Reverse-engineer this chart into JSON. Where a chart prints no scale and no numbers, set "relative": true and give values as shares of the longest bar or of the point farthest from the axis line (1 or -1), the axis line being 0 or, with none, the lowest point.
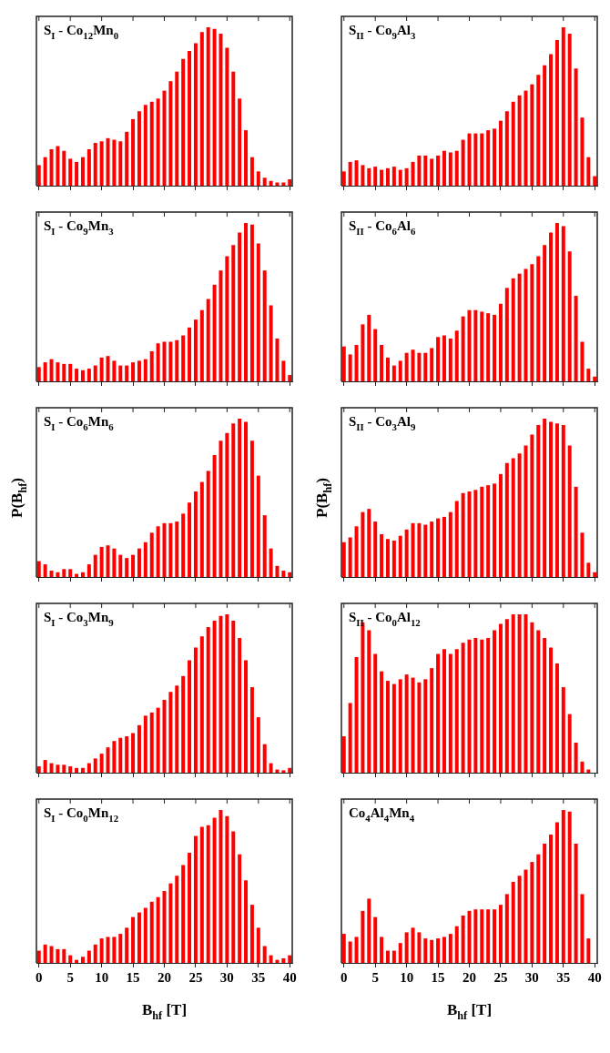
{
  "chart_data": [
    {
      "type": "bar",
      "title": "S$_{I}$ - Co$_{12}$Mn$_{0}$",
      "relative": true,
      "color": "#ff0000",
      "xlim": [
        -0.4,
        40.4
      ],
      "xticks": [
        0,
        5,
        10,
        15,
        20,
        25,
        30,
        35,
        40
      ],
      "tick_labels": false,
      "x": [
        0,
        1,
        2,
        3,
        4,
        5,
        6,
        7,
        8,
        9,
        10,
        11,
        12,
        13,
        14,
        15,
        16,
        17,
        18,
        19,
        20,
        21,
        22,
        23,
        24,
        25,
        26,
        27,
        28,
        29,
        30,
        31,
        32,
        33,
        34,
        35,
        36,
        37,
        38,
        39,
        40
      ],
      "values": [
        0.13,
        0.18,
        0.23,
        0.25,
        0.22,
        0.17,
        0.15,
        0.18,
        0.23,
        0.27,
        0.28,
        0.3,
        0.29,
        0.28,
        0.34,
        0.42,
        0.47,
        0.51,
        0.53,
        0.55,
        0.6,
        0.66,
        0.72,
        0.8,
        0.85,
        0.9,
        0.97,
        1.0,
        0.99,
        0.96,
        0.87,
        0.72,
        0.55,
        0.35,
        0.18,
        0.09,
        0.05,
        0.03,
        0.02,
        0.02,
        0.04
      ]
    },
    {
      "type": "bar",
      "title": "S$_{II}$ - Co$_{9}$Al$_{3}$",
      "relative": true,
      "color": "#ff0000",
      "xlim": [
        -0.4,
        40.4
      ],
      "xticks": [
        0,
        5,
        10,
        15,
        20,
        25,
        30,
        35,
        40
      ],
      "tick_labels": false,
      "x": [
        0,
        1,
        2,
        3,
        4,
        5,
        6,
        7,
        8,
        9,
        10,
        11,
        12,
        13,
        14,
        15,
        16,
        17,
        18,
        19,
        20,
        21,
        22,
        23,
        24,
        25,
        26,
        27,
        28,
        29,
        30,
        31,
        32,
        33,
        34,
        35,
        36,
        37,
        38,
        39,
        40
      ],
      "values": [
        0.09,
        0.15,
        0.16,
        0.13,
        0.11,
        0.12,
        0.1,
        0.11,
        0.12,
        0.1,
        0.11,
        0.15,
        0.19,
        0.19,
        0.17,
        0.19,
        0.22,
        0.21,
        0.22,
        0.29,
        0.33,
        0.33,
        0.33,
        0.35,
        0.36,
        0.41,
        0.47,
        0.53,
        0.57,
        0.6,
        0.64,
        0.7,
        0.76,
        0.83,
        0.92,
        1.0,
        0.96,
        0.74,
        0.43,
        0.18,
        0.06
      ]
    },
    {
      "type": "bar",
      "title": "S$_{I}$ - Co$_{9}$Mn$_{3}$",
      "relative": true,
      "color": "#ff0000",
      "xlim": [
        -0.4,
        40.4
      ],
      "xticks": [
        0,
        5,
        10,
        15,
        20,
        25,
        30,
        35,
        40
      ],
      "tick_labels": false,
      "x": [
        0,
        1,
        2,
        3,
        4,
        5,
        6,
        7,
        8,
        9,
        10,
        11,
        12,
        13,
        14,
        15,
        16,
        17,
        18,
        19,
        20,
        21,
        22,
        23,
        24,
        25,
        26,
        27,
        28,
        29,
        30,
        31,
        32,
        33,
        34,
        35,
        36,
        37,
        38,
        39,
        40
      ],
      "values": [
        0.09,
        0.12,
        0.14,
        0.12,
        0.11,
        0.11,
        0.08,
        0.07,
        0.08,
        0.1,
        0.15,
        0.16,
        0.13,
        0.1,
        0.1,
        0.12,
        0.13,
        0.14,
        0.19,
        0.24,
        0.25,
        0.25,
        0.26,
        0.29,
        0.34,
        0.39,
        0.45,
        0.52,
        0.61,
        0.7,
        0.79,
        0.86,
        0.94,
        1.0,
        0.99,
        0.87,
        0.7,
        0.48,
        0.27,
        0.13,
        0.04
      ]
    },
    {
      "type": "bar",
      "title": "S$_{II}$ - Co$_{6}$Al$_{6}$",
      "relative": true,
      "color": "#ff0000",
      "xlim": [
        -0.4,
        40.4
      ],
      "xticks": [
        0,
        5,
        10,
        15,
        20,
        25,
        30,
        35,
        40
      ],
      "tick_labels": false,
      "x": [
        0,
        1,
        2,
        3,
        4,
        5,
        6,
        7,
        8,
        9,
        10,
        11,
        12,
        13,
        14,
        15,
        16,
        17,
        18,
        19,
        20,
        21,
        22,
        23,
        24,
        25,
        26,
        27,
        28,
        29,
        30,
        31,
        32,
        33,
        34,
        35,
        36,
        37,
        38,
        39,
        40
      ],
      "values": [
        0.22,
        0.17,
        0.23,
        0.36,
        0.42,
        0.33,
        0.23,
        0.15,
        0.1,
        0.13,
        0.18,
        0.2,
        0.18,
        0.18,
        0.21,
        0.28,
        0.29,
        0.27,
        0.32,
        0.41,
        0.45,
        0.45,
        0.44,
        0.43,
        0.42,
        0.49,
        0.59,
        0.65,
        0.68,
        0.71,
        0.74,
        0.79,
        0.86,
        0.94,
        1.0,
        0.98,
        0.82,
        0.54,
        0.25,
        0.08,
        0.03
      ]
    },
    {
      "type": "bar",
      "title": "S$_{I}$ - Co$_{6}$Mn$_{6}$",
      "ylabel": "P(B$_{hf}$)",
      "relative": true,
      "color": "#ff0000",
      "xlim": [
        -0.4,
        40.4
      ],
      "xticks": [
        0,
        5,
        10,
        15,
        20,
        25,
        30,
        35,
        40
      ],
      "tick_labels": false,
      "x": [
        0,
        1,
        2,
        3,
        4,
        5,
        6,
        7,
        8,
        9,
        10,
        11,
        12,
        13,
        14,
        15,
        16,
        17,
        18,
        19,
        20,
        21,
        22,
        23,
        24,
        25,
        26,
        27,
        28,
        29,
        30,
        31,
        32,
        33,
        34,
        35,
        36,
        37,
        38,
        39,
        40
      ],
      "values": [
        0.1,
        0.08,
        0.04,
        0.03,
        0.05,
        0.05,
        0.02,
        0.03,
        0.08,
        0.14,
        0.19,
        0.2,
        0.18,
        0.14,
        0.12,
        0.14,
        0.18,
        0.22,
        0.28,
        0.32,
        0.34,
        0.34,
        0.35,
        0.4,
        0.47,
        0.54,
        0.6,
        0.67,
        0.77,
        0.86,
        0.91,
        0.97,
        1.0,
        0.98,
        0.86,
        0.64,
        0.39,
        0.18,
        0.07,
        0.04,
        0.03
      ]
    },
    {
      "type": "bar",
      "title": "S$_{II}$ - Co$_{3}$Al$_{9}$",
      "ylabel": "P(B$_{hf}$)",
      "relative": true,
      "color": "#ff0000",
      "xlim": [
        -0.4,
        40.4
      ],
      "xticks": [
        0,
        5,
        10,
        15,
        20,
        25,
        30,
        35,
        40
      ],
      "tick_labels": false,
      "x": [
        0,
        1,
        2,
        3,
        4,
        5,
        6,
        7,
        8,
        9,
        10,
        11,
        12,
        13,
        14,
        15,
        16,
        17,
        18,
        19,
        20,
        21,
        22,
        23,
        24,
        25,
        26,
        27,
        28,
        29,
        30,
        31,
        32,
        33,
        34,
        35,
        36,
        37,
        38,
        39,
        40
      ],
      "values": [
        0.22,
        0.25,
        0.32,
        0.41,
        0.43,
        0.35,
        0.27,
        0.24,
        0.23,
        0.26,
        0.3,
        0.34,
        0.34,
        0.33,
        0.35,
        0.37,
        0.38,
        0.41,
        0.48,
        0.53,
        0.54,
        0.55,
        0.57,
        0.58,
        0.59,
        0.65,
        0.72,
        0.75,
        0.78,
        0.83,
        0.9,
        0.96,
        1.0,
        0.98,
        0.97,
        0.96,
        0.83,
        0.57,
        0.28,
        0.09,
        0.03
      ]
    },
    {
      "type": "bar",
      "title": "S$_{I}$ - Co$_{3}$Mn$_{9}$",
      "relative": true,
      "color": "#ff0000",
      "xlim": [
        -0.4,
        40.4
      ],
      "xticks": [
        0,
        5,
        10,
        15,
        20,
        25,
        30,
        35,
        40
      ],
      "tick_labels": false,
      "x": [
        0,
        1,
        2,
        3,
        4,
        5,
        6,
        7,
        8,
        9,
        10,
        11,
        12,
        13,
        14,
        15,
        16,
        17,
        18,
        19,
        20,
        21,
        22,
        23,
        24,
        25,
        26,
        27,
        28,
        29,
        30,
        31,
        32,
        33,
        34,
        35,
        36,
        37,
        38,
        39,
        40
      ],
      "values": [
        0.04,
        0.08,
        0.06,
        0.05,
        0.05,
        0.04,
        0.03,
        0.03,
        0.06,
        0.09,
        0.12,
        0.16,
        0.2,
        0.22,
        0.23,
        0.25,
        0.3,
        0.36,
        0.38,
        0.41,
        0.46,
        0.51,
        0.55,
        0.61,
        0.71,
        0.79,
        0.86,
        0.92,
        0.96,
        0.99,
        1.0,
        0.96,
        0.85,
        0.71,
        0.54,
        0.35,
        0.18,
        0.06,
        0.02,
        0.015,
        0.03
      ]
    },
    {
      "type": "bar",
      "title": "S$_{II}$ - Co$_{0}$Al$_{12}$",
      "relative": true,
      "color": "#ff0000",
      "xlim": [
        -0.4,
        40.4
      ],
      "xticks": [
        0,
        5,
        10,
        15,
        20,
        25,
        30,
        35,
        40
      ],
      "tick_labels": false,
      "x": [
        0,
        1,
        2,
        3,
        4,
        5,
        6,
        7,
        8,
        9,
        10,
        11,
        12,
        13,
        14,
        15,
        16,
        17,
        18,
        19,
        20,
        21,
        22,
        23,
        24,
        25,
        26,
        27,
        28,
        29,
        30,
        31,
        32,
        33,
        34,
        35,
        36,
        37,
        38,
        39,
        40
      ],
      "values": [
        0.23,
        0.44,
        0.73,
        0.95,
        0.9,
        0.75,
        0.64,
        0.58,
        0.56,
        0.59,
        0.62,
        0.6,
        0.57,
        0.59,
        0.66,
        0.75,
        0.78,
        0.75,
        0.78,
        0.82,
        0.84,
        0.85,
        0.84,
        0.85,
        0.9,
        0.94,
        0.97,
        1.0,
        1.0,
        1.0,
        0.95,
        0.9,
        0.85,
        0.79,
        0.69,
        0.54,
        0.37,
        0.19,
        0.07,
        0.02,
        0
      ]
    },
    {
      "type": "bar",
      "title": "S$_{I}$ - Co$_{0}$Mn$_{12}$",
      "xlabel": "B$_{hf}$ [T]",
      "relative": true,
      "color": "#ff0000",
      "xlim": [
        -0.4,
        40.4
      ],
      "xticks": [
        0,
        5,
        10,
        15,
        20,
        25,
        30,
        35,
        40
      ],
      "tick_labels": "x",
      "x": [
        0,
        1,
        2,
        3,
        4,
        5,
        6,
        7,
        8,
        9,
        10,
        11,
        12,
        13,
        14,
        15,
        16,
        17,
        18,
        19,
        20,
        21,
        22,
        23,
        24,
        25,
        26,
        27,
        28,
        29,
        30,
        31,
        32,
        33,
        34,
        35,
        36,
        37,
        38,
        39,
        40
      ],
      "values": [
        0.08,
        0.12,
        0.11,
        0.09,
        0.09,
        0.05,
        0.02,
        0.04,
        0.08,
        0.12,
        0.16,
        0.17,
        0.17,
        0.19,
        0.23,
        0.3,
        0.33,
        0.36,
        0.4,
        0.43,
        0.47,
        0.52,
        0.57,
        0.64,
        0.72,
        0.83,
        0.89,
        0.9,
        0.95,
        1.0,
        0.96,
        0.86,
        0.71,
        0.54,
        0.38,
        0.23,
        0.11,
        0.05,
        0.02,
        0.03,
        0.05
      ]
    },
    {
      "type": "bar",
      "title": "Co$_{4}$Al$_{4}$Mn$_{4}$",
      "xlabel": "B$_{hf}$ [T]",
      "relative": true,
      "color": "#ff0000",
      "xlim": [
        -0.4,
        40.4
      ],
      "xticks": [
        0,
        5,
        10,
        15,
        20,
        25,
        30,
        35,
        40
      ],
      "tick_labels": "x",
      "x": [
        0,
        1,
        2,
        3,
        4,
        5,
        6,
        7,
        8,
        9,
        10,
        11,
        12,
        13,
        14,
        15,
        16,
        17,
        18,
        19,
        20,
        21,
        22,
        23,
        24,
        25,
        26,
        27,
        28,
        29,
        30,
        31,
        32,
        33,
        34,
        35,
        36,
        37,
        38,
        39,
        40
      ],
      "values": [
        0.19,
        0.14,
        0.17,
        0.34,
        0.42,
        0.3,
        0.17,
        0.08,
        0.08,
        0.13,
        0.2,
        0.23,
        0.2,
        0.16,
        0.15,
        0.16,
        0.17,
        0.19,
        0.24,
        0.31,
        0.34,
        0.35,
        0.35,
        0.35,
        0.35,
        0.38,
        0.45,
        0.53,
        0.57,
        0.61,
        0.66,
        0.71,
        0.78,
        0.84,
        0.92,
        1.0,
        0.99,
        0.78,
        0.45,
        0.16,
        0
      ]
    }
  ]
}
